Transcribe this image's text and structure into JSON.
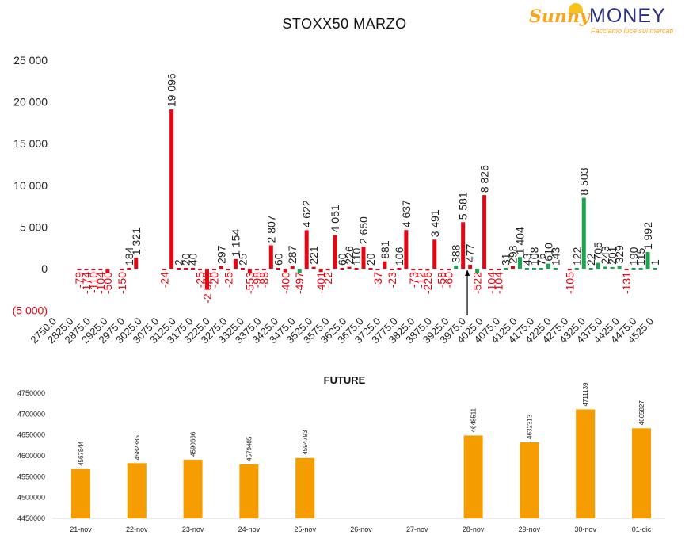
{
  "logo": {
    "sunny": "Sunny",
    "money": "MONEY",
    "tagline": "Facciamo luce sui mercati"
  },
  "chart_data": [
    {
      "type": "bar",
      "title": "STOXX50 MARZO",
      "ylim": [
        -5000,
        25000
      ],
      "yticks": [
        25000,
        20000,
        15000,
        10000,
        5000,
        0,
        -5000
      ],
      "ytick_labels": [
        "25 000",
        "20 000",
        "15 000",
        "10 000",
        "5 000",
        "0",
        "(5 000)"
      ],
      "colors": {
        "call": "#e30613",
        "put": "#1aa650",
        "negative_label": "#e30613",
        "marker": "#000000"
      },
      "categories": [
        "2750.0",
        "2825.0",
        "2875.0",
        "2925.0",
        "2975.0",
        "3025.0",
        "3075.0",
        "3125.0",
        "3175.0",
        "3225.0",
        "3275.0",
        "3325.0",
        "3375.0",
        "3425.0",
        "3475.0",
        "3525.0",
        "3575.0",
        "3625.0",
        "3675.0",
        "3725.0",
        "3775.0",
        "3825.0",
        "3875.0",
        "3925.0",
        "3975.0",
        "4025.0",
        "4075.0",
        "4125.0",
        "4175.0",
        "4225.0",
        "4275.0",
        "4325.0",
        "4375.0",
        "4425.0",
        "4475.0",
        "4525.0"
      ],
      "points": [
        {
          "x": 2800,
          "v": -79,
          "c": "r"
        },
        {
          "x": 2825,
          "v": -174,
          "c": "r"
        },
        {
          "x": 2850,
          "v": -110,
          "c": "r"
        },
        {
          "x": 2875,
          "v": -104,
          "c": "r"
        },
        {
          "x": 2900,
          "v": -500,
          "c": "r"
        },
        {
          "x": 2950,
          "v": -150,
          "c": "r"
        },
        {
          "x": 2975,
          "v": 184,
          "c": "r"
        },
        {
          "x": 3000,
          "v": 1321,
          "c": "r"
        },
        {
          "x": 3100,
          "v": -24,
          "c": "r"
        },
        {
          "x": 3125,
          "v": 19096,
          "c": "r"
        },
        {
          "x": 3150,
          "v": 2,
          "c": "r"
        },
        {
          "x": 3175,
          "v": 20,
          "c": "r"
        },
        {
          "x": 3200,
          "v": 40,
          "c": "r"
        },
        {
          "x": 3225,
          "v": -25,
          "c": "r"
        },
        {
          "x": 3250,
          "v": -2529,
          "c": "r"
        },
        {
          "x": 3275,
          "v": -20,
          "c": "r"
        },
        {
          "x": 3300,
          "v": 297,
          "c": "r"
        },
        {
          "x": 3325,
          "v": -25,
          "c": "r"
        },
        {
          "x": 3350,
          "v": 1154,
          "c": "r"
        },
        {
          "x": 3375,
          "v": 25,
          "c": "r"
        },
        {
          "x": 3400,
          "v": -553,
          "c": "r"
        },
        {
          "x": 3425,
          "v": -98,
          "c": "r"
        },
        {
          "x": 3450,
          "v": -88,
          "c": "r"
        },
        {
          "x": 3475,
          "v": 2807,
          "c": "r"
        },
        {
          "x": 3500,
          "v": 60,
          "c": "r"
        },
        {
          "x": 3525,
          "v": -400,
          "c": "r"
        },
        {
          "x": 3550,
          "v": 287,
          "c": "r"
        },
        {
          "x": 3575,
          "v": -497,
          "c": "g"
        },
        {
          "x": 3600,
          "v": 4622,
          "c": "r"
        },
        {
          "x": 3625,
          "v": 221,
          "c": "r"
        },
        {
          "x": 3650,
          "v": -401,
          "c": "r"
        },
        {
          "x": 3675,
          "v": -22,
          "c": "r"
        },
        {
          "x": 3700,
          "v": 4051,
          "c": "r"
        },
        {
          "x": 3725,
          "v": 60,
          "c": "r"
        },
        {
          "x": 3750,
          "v": 226,
          "c": "r"
        },
        {
          "x": 3775,
          "v": 110,
          "c": "r"
        },
        {
          "x": 3800,
          "v": 2650,
          "c": "r"
        },
        {
          "x": 3825,
          "v": 20,
          "c": "r"
        },
        {
          "x": 3850,
          "v": -37,
          "c": "r"
        },
        {
          "x": 3875,
          "v": 881,
          "c": "r"
        },
        {
          "x": 3900,
          "v": -23,
          "c": "r"
        },
        {
          "x": 3925,
          "v": 106,
          "c": "r"
        },
        {
          "x": 3950,
          "v": 4637,
          "c": "r"
        },
        {
          "x": 3975,
          "v": -73,
          "c": "r"
        },
        {
          "x": 4000,
          "v": -12,
          "c": "r"
        },
        {
          "x": 4025,
          "v": -226,
          "c": "r"
        },
        {
          "x": 4050,
          "v": 3491,
          "c": "r"
        },
        {
          "x": 4075,
          "v": -58,
          "c": "r"
        },
        {
          "x": 4100,
          "v": -60,
          "c": "r"
        },
        {
          "x": 4125,
          "v": 388,
          "c": "g"
        },
        {
          "x": 4150,
          "v": 5581,
          "c": "r"
        },
        {
          "x": 4175,
          "v": 477,
          "c": "r"
        },
        {
          "x": 4200,
          "v": -522,
          "c": "g"
        },
        {
          "x": 4225,
          "v": 8826,
          "c": "r"
        },
        {
          "x": 4250,
          "v": -104,
          "c": "r"
        },
        {
          "x": 4275,
          "v": -104,
          "c": "r"
        },
        {
          "x": 4300,
          "v": 31,
          "c": "g"
        },
        {
          "x": 4325,
          "v": 298,
          "c": "r"
        },
        {
          "x": 4350,
          "v": 1404,
          "c": "g"
        },
        {
          "x": 4375,
          "v": 43,
          "c": "g"
        },
        {
          "x": 4400,
          "v": 108,
          "c": "g"
        },
        {
          "x": 4425,
          "v": 76,
          "c": "g"
        },
        {
          "x": 4450,
          "v": 610,
          "c": "g"
        },
        {
          "x": 4475,
          "v": 143,
          "c": "g"
        },
        {
          "x": 4525,
          "v": -105,
          "c": "r"
        },
        {
          "x": 4550,
          "v": 122,
          "c": "g"
        },
        {
          "x": 4575,
          "v": 8503,
          "c": "g"
        },
        {
          "x": 4600,
          "v": 22,
          "c": "g"
        },
        {
          "x": 4625,
          "v": 705,
          "c": "g"
        },
        {
          "x": 4650,
          "v": 243,
          "c": "g"
        },
        {
          "x": 4675,
          "v": 201,
          "c": "g"
        },
        {
          "x": 4700,
          "v": 329,
          "c": "g"
        },
        {
          "x": 4725,
          "v": -131,
          "c": "r"
        },
        {
          "x": 4750,
          "v": 190,
          "c": "g"
        },
        {
          "x": 4775,
          "v": 115,
          "c": "g"
        },
        {
          "x": 4800,
          "v": 1992,
          "c": "g"
        },
        {
          "x": 4825,
          "v": 1,
          "c": "g"
        }
      ],
      "marker_x": 4165
    },
    {
      "type": "bar",
      "title": "FUTURE",
      "ylim": [
        4450000,
        4750000
      ],
      "yticks": [
        4750000,
        4700000,
        4650000,
        4600000,
        4550000,
        4500000,
        4450000
      ],
      "categories": [
        "21-nov",
        "22-nov",
        "23-nov",
        "24-nov",
        "25-nov",
        "26-nov",
        "27-nov",
        "28-nov",
        "29-nov",
        "30-nov",
        "01-dic"
      ],
      "values": [
        4567844,
        4582385,
        4590666,
        4579485,
        4594793,
        null,
        null,
        4648511,
        4632313,
        4711139,
        4665827
      ],
      "color": "#f59c00"
    }
  ]
}
